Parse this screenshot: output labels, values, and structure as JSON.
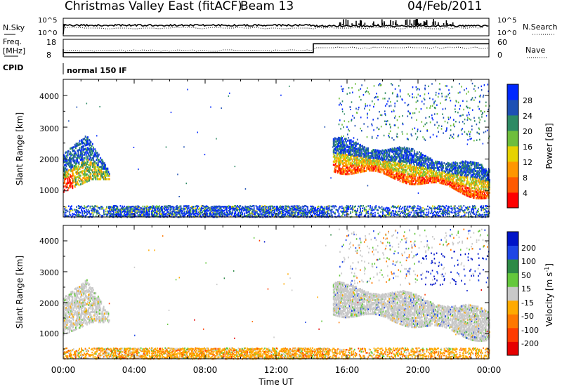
{
  "header": {
    "title": "Christmas Valley East (fitACF)",
    "beam": "Beam 13",
    "date": "04/Feb/2011"
  },
  "summary": {
    "nsky_label": "N.Sky",
    "nsearch_label": "N.Search",
    "freq_label_1": "Freq.",
    "freq_label_2": "[MHz]",
    "nave_label": "Nave",
    "cpid_label": "CPID",
    "cpid_value": "normal 150 IF",
    "noise_ticks": [
      "10^5",
      "10^0"
    ],
    "freq_ticks": [
      "18",
      "8"
    ],
    "nave_ticks": [
      "60",
      "0"
    ]
  },
  "x_axis": {
    "label": "Time UT",
    "ticks": [
      "00:00",
      "04:00",
      "08:00",
      "12:00",
      "16:00",
      "20:00",
      "00:00"
    ]
  },
  "colorbars": {
    "power": {
      "label": "Power [dB]",
      "ticks": [
        "4",
        "8",
        "12",
        "16",
        "20",
        "24",
        "28"
      ],
      "colors": [
        "#0028ff",
        "#1e50b4",
        "#2d8a64",
        "#6ebe3c",
        "#e6d200",
        "#ff9600",
        "#ff5a00",
        "#ff0000"
      ]
    },
    "velocity": {
      "label_main": "Velocity [m s",
      "label_sup": "-1",
      "label_end": "]",
      "ticks": [
        "200",
        "100",
        "50",
        "15",
        "-15",
        "-50",
        "-100",
        "-200"
      ],
      "colors": [
        "#0014c8",
        "#1e46e6",
        "#2d8a46",
        "#64c83c",
        "#c8c8c8",
        "#ffaa00",
        "#ff7800",
        "#ff3c00",
        "#e60000"
      ]
    }
  },
  "chart_data": [
    {
      "type": "heatmap",
      "panel": "power",
      "ylabel": "Slant Range [km]",
      "yticks": [
        "1000",
        "2000",
        "3000",
        "4000"
      ],
      "ylim": [
        180,
        4500
      ],
      "xlim": [
        0,
        24
      ],
      "x_unit": "hours UT",
      "colorbar_range": [
        0,
        32
      ],
      "echo_regions": [
        {
          "region": "near-range ground scatter",
          "hours": [
            0,
            24
          ],
          "range_km": [
            200,
            500
          ],
          "level": "4-16 dB"
        },
        {
          "region": "early evening echoes",
          "hours": [
            0,
            2.6
          ],
          "range_km": [
            1000,
            2800
          ],
          "level": "8-30 dB"
        },
        {
          "region": "main band",
          "hours": [
            15.2,
            24
          ],
          "range_km": [
            1000,
            2600
          ],
          "level": "4-30 dB"
        },
        {
          "region": "far-range scatter",
          "hours": [
            15.5,
            24
          ],
          "range_km": [
            2600,
            4400
          ],
          "level": "4-20 dB"
        }
      ]
    },
    {
      "type": "heatmap",
      "panel": "velocity",
      "ylabel": "Slant Range [km]",
      "yticks": [
        "1000",
        "2000",
        "3000",
        "4000"
      ],
      "ylim": [
        180,
        4500
      ],
      "xlim": [
        0,
        24
      ],
      "x_unit": "hours UT",
      "colorbar_range": [
        -250,
        250
      ],
      "echo_regions": [
        {
          "region": "near-range scatter",
          "hours": [
            0,
            24
          ],
          "range_km": [
            200,
            500
          ],
          "velocity": "-50 to -15 m/s"
        },
        {
          "region": "early evening ground scatter",
          "hours": [
            0,
            2.6
          ],
          "range_km": [
            1000,
            2800
          ],
          "velocity": "-15 to 15 m/s"
        },
        {
          "region": "main band ground scatter",
          "hours": [
            15.2,
            24
          ],
          "range_km": [
            1000,
            2600
          ],
          "velocity": "-15 to 15 m/s"
        },
        {
          "region": "far-range ionospheric scatter",
          "hours": [
            20,
            24
          ],
          "range_km": [
            2200,
            3600
          ],
          "velocity": "100 to 250 m/s"
        }
      ]
    },
    {
      "type": "line",
      "panel": "frequency-nave",
      "series": [
        {
          "name": "Freq.",
          "x": [
            0,
            14.1,
            14.1,
            24
          ],
          "values": [
            10.5,
            10.5,
            15.5,
            15.5
          ]
        }
      ],
      "xlim": [
        0,
        24
      ],
      "ylim": [
        8,
        18
      ]
    }
  ]
}
